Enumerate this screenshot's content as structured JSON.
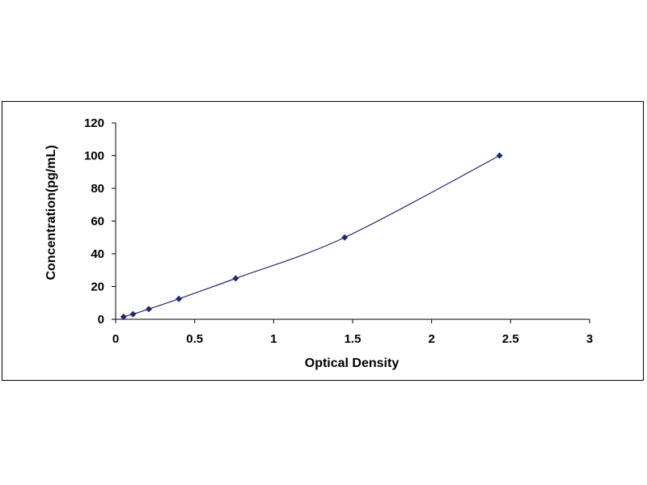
{
  "chart_data": {
    "type": "scatter",
    "title": "",
    "xlabel": "Optical Density",
    "ylabel": "Concentration(pg/mL)",
    "xlim": [
      0,
      3
    ],
    "ylim": [
      0,
      120
    ],
    "x_ticks": [
      "0",
      "0.5",
      "1",
      "1.5",
      "2",
      "2.5",
      "3"
    ],
    "y_ticks": [
      "0",
      "20",
      "40",
      "60",
      "80",
      "100",
      "120"
    ],
    "grid": false,
    "legend": "none",
    "marker": "diamond",
    "trendline": "smooth curve through points",
    "color": "#1f2a6e",
    "series": [
      {
        "x": [
          0.05,
          0.11,
          0.21,
          0.4,
          0.76,
          1.45,
          2.43
        ],
        "y": [
          1.56,
          3.12,
          6.25,
          12.5,
          25,
          50,
          100
        ]
      }
    ]
  }
}
